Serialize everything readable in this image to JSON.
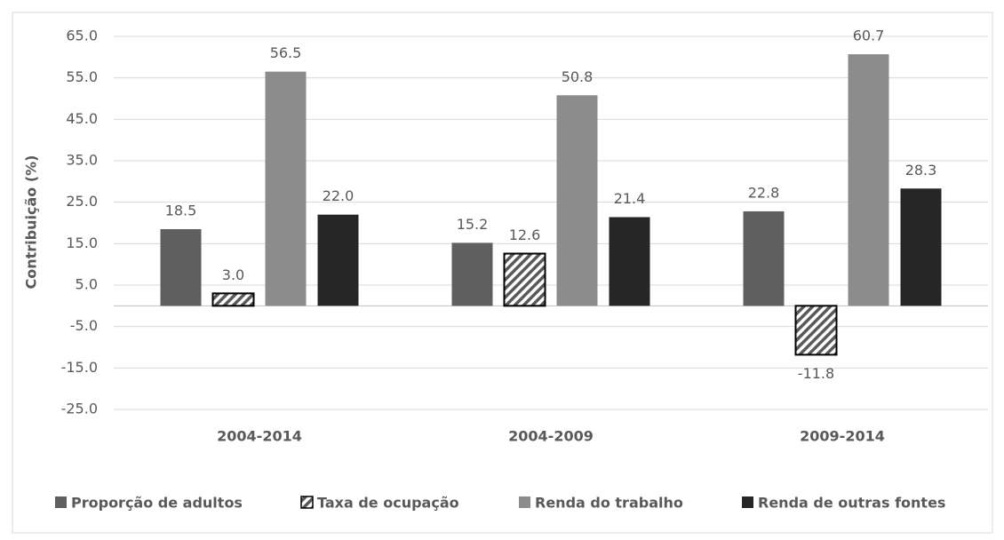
{
  "chart_data": {
    "type": "bar",
    "y_label": "Contribuição (%)",
    "categories": [
      "2004-2014",
      "2004-2009",
      "2009-2014"
    ],
    "series": [
      {
        "name": "Proporção de adultos",
        "color": "#5f5f5f",
        "values": [
          18.5,
          15.2,
          22.8
        ],
        "value_labels": [
          "18.5",
          "15.2",
          "22.8"
        ]
      },
      {
        "name": "Taxa de ocupação",
        "color": "#595959",
        "hatch": true,
        "values": [
          3.0,
          12.6,
          -11.8
        ],
        "value_labels": [
          "3.0",
          "12.6",
          "-11.8"
        ]
      },
      {
        "name": "Renda do trabalho",
        "color": "#8c8c8c",
        "values": [
          56.5,
          50.8,
          60.7
        ],
        "value_labels": [
          "56.5",
          "50.8",
          "60.7"
        ]
      },
      {
        "name": "Renda de outras fontes",
        "color": "#262626",
        "values": [
          22.0,
          21.4,
          28.3
        ],
        "value_labels": [
          "22.0",
          "21.4",
          "28.3"
        ]
      }
    ],
    "ylim": [
      -25,
      65
    ],
    "yticks": [
      {
        "value": -25,
        "label": "-25.0"
      },
      {
        "value": -15,
        "label": "-15.0"
      },
      {
        "value": -5,
        "label": "-5.0"
      },
      {
        "value": 5,
        "label": "5.0"
      },
      {
        "value": 15,
        "label": "15.0"
      },
      {
        "value": 25,
        "label": "25.0"
      },
      {
        "value": 35,
        "label": "35.0"
      },
      {
        "value": 45,
        "label": "45.0"
      },
      {
        "value": 55,
        "label": "55.0"
      },
      {
        "value": 65,
        "label": "65.0"
      }
    ],
    "grid": true,
    "legend": "bottom"
  }
}
